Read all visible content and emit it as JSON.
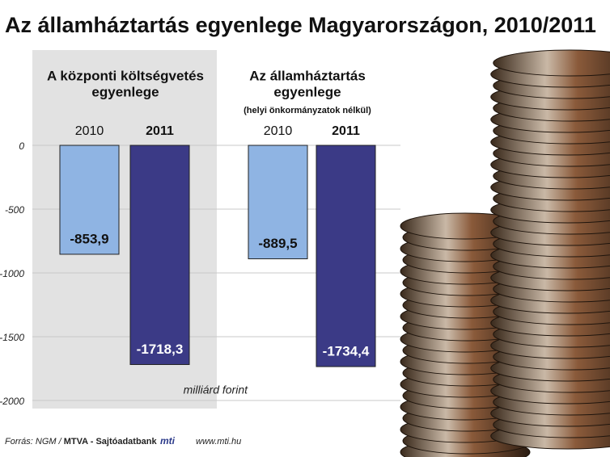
{
  "chart_data": {
    "type": "bar",
    "title": "Az államháztartás egyenlege Magyarországon, 2010/2011",
    "unit_label": "milliárd forint",
    "ylim": [
      -2000,
      0
    ],
    "yticks": [
      0,
      -500,
      -1000,
      -1500,
      -2000
    ],
    "grid": true,
    "groups": [
      {
        "title": [
          "A központi költségvetés",
          "egyenlege"
        ],
        "categories": [
          "2010",
          "2011"
        ],
        "values": [
          -853.9,
          -1718.3
        ],
        "value_labels": [
          "-853,9",
          "-1718,3"
        ],
        "colors": [
          "#8fb4e3",
          "#3b3a86"
        ]
      },
      {
        "title": [
          "Az államháztartás",
          "egyenlege"
        ],
        "subtitle": "(helyi önkormányzatok nélkül)",
        "categories": [
          "2010",
          "2011"
        ],
        "values": [
          -889.5,
          -1734.4
        ],
        "value_labels": [
          "-889,5",
          "-1734,4"
        ],
        "colors": [
          "#8fb4e3",
          "#3b3a86"
        ]
      }
    ],
    "source": [
      "Forrás: NGM /",
      "MTVA - Sajtóadatbank"
    ],
    "logo": "mti",
    "website": "www.mti.hu"
  }
}
